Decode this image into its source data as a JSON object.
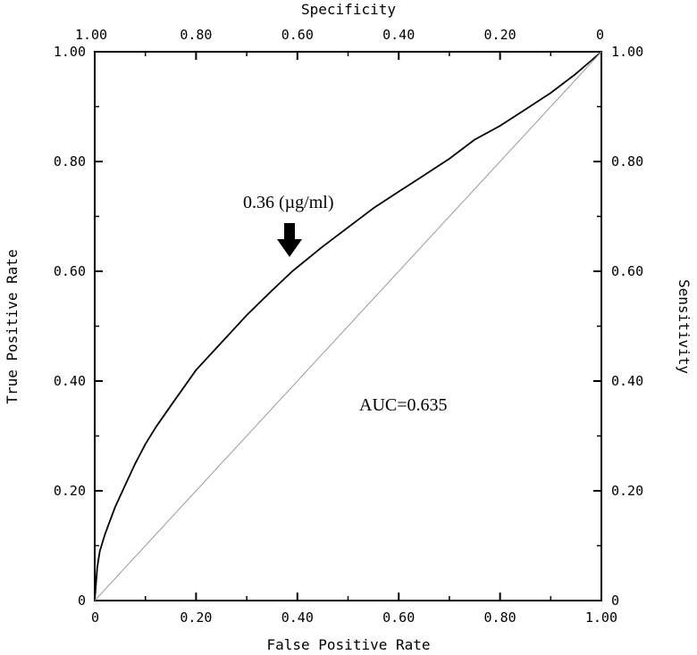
{
  "chart_data": {
    "type": "line",
    "xlabel": "False Positive Rate",
    "ylabel": "True Positive Rate",
    "top_label": "Specificity",
    "right_label": "Sensitivity",
    "xlim": [
      0,
      1
    ],
    "ylim": [
      0,
      1
    ],
    "grid": false,
    "bottom_ticks": [
      "0",
      "0.20",
      "0.40",
      "0.60",
      "0.80",
      "1.00"
    ],
    "left_ticks": [
      "0",
      "0.20",
      "0.40",
      "0.60",
      "0.80",
      "1.00"
    ],
    "top_ticks": [
      "1.00",
      "0.80",
      "0.60",
      "0.40",
      "0.20",
      "0"
    ],
    "right_ticks": [
      "0",
      "0.20",
      "0.40",
      "0.60",
      "0.80",
      "1.00"
    ],
    "series": [
      {
        "style": "solid-black",
        "x": [
          0,
          0.005,
          0.01,
          0.02,
          0.04,
          0.06,
          0.08,
          0.1,
          0.12,
          0.15,
          0.2,
          0.25,
          0.3,
          0.35,
          0.39,
          0.45,
          0.5,
          0.55,
          0.6,
          0.65,
          0.7,
          0.75,
          0.8,
          0.85,
          0.9,
          0.95,
          1.0
        ],
        "y": [
          0,
          0.06,
          0.09,
          0.12,
          0.17,
          0.21,
          0.25,
          0.285,
          0.315,
          0.355,
          0.42,
          0.47,
          0.52,
          0.565,
          0.6,
          0.645,
          0.68,
          0.715,
          0.745,
          0.775,
          0.805,
          0.84,
          0.865,
          0.895,
          0.925,
          0.96,
          1.0
        ]
      },
      {
        "style": "diagonal-gray",
        "x": [
          0,
          1
        ],
        "y": [
          0,
          1
        ]
      }
    ],
    "annotations": [
      {
        "text": "0.36 (µg/ml)",
        "x": 0.39,
        "y": 0.6
      },
      {
        "text": "AUC=0.635",
        "x": 0.7,
        "y": 0.36
      }
    ]
  }
}
